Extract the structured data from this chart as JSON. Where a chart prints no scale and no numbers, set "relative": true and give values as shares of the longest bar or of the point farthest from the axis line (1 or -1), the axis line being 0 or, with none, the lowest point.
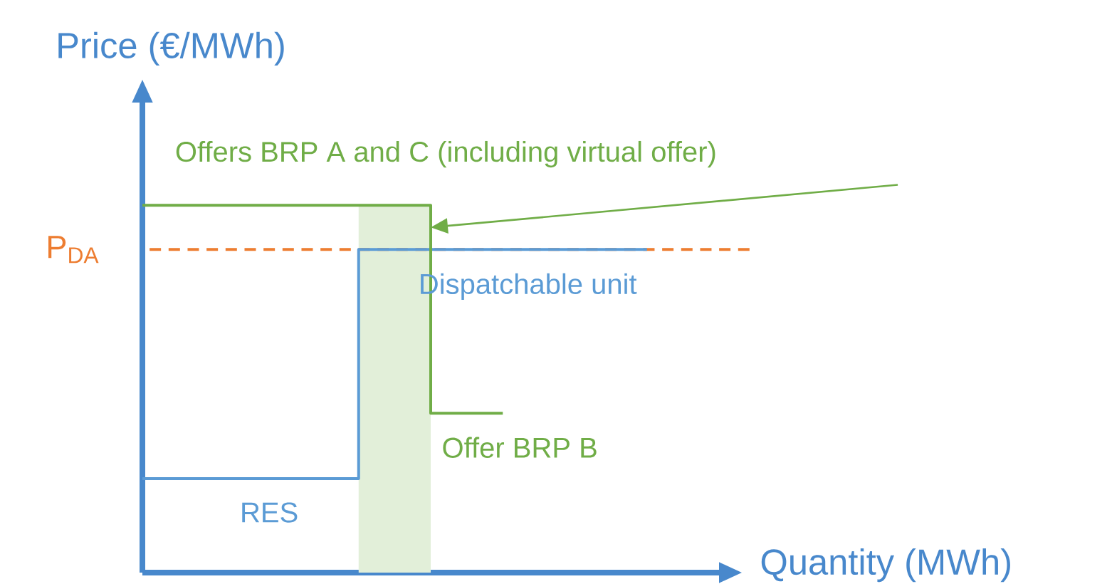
{
  "chart_data": {
    "type": "step",
    "relative": true,
    "xlabel": "Quantity (MWh)",
    "ylabel": "Price (€/MWh)",
    "categories": [
      null,
      null,
      null,
      null,
      null,
      null,
      null,
      null,
      null,
      null,
      null,
      null,
      null,
      null,
      null,
      null,
      null,
      null,
      null,
      null,
      null,
      null,
      null,
      null,
      null,
      null,
      null,
      null,
      null,
      null,
      null,
      null,
      null,
      null,
      null,
      null,
      null,
      null,
      null,
      null,
      null
    ],
    "series": [
      {
        "type": "area",
        "color": "#e2efd9",
        "values": [
          null,
          null,
          null,
          null,
          null,
          null,
          null,
          null,
          null,
          null,
          null,
          null,
          null,
          null,
          null,
          1,
          1,
          1,
          1,
          1,
          1,
          null,
          null,
          null,
          null,
          null,
          null,
          null,
          null,
          null,
          null,
          null,
          null,
          null,
          null,
          null,
          null,
          null,
          null,
          null,
          null
        ]
      },
      {
        "name": "Dispatchable unit",
        "color": "#5b9bd5",
        "values": [
          0.256,
          0.256,
          0.256,
          0.256,
          0.256,
          0.256,
          0.256,
          0.256,
          0.256,
          0.256,
          0.256,
          0.256,
          0.256,
          0.256,
          0.256,
          0.88,
          0.88,
          0.88,
          0.88,
          0.88,
          0.88,
          0.88,
          0.88,
          0.88,
          0.88,
          0.88,
          0.88,
          0.88,
          0.88,
          0.88,
          0.88,
          0.88,
          0.88,
          0.88,
          0.88,
          0.88,
          null,
          null,
          null,
          null,
          null
        ]
      },
      {
        "name": "Offers BRP A and C (including virtual offer)",
        "color": "#70ad47",
        "values": [
          1,
          1,
          1,
          1,
          1,
          1,
          1,
          1,
          1,
          1,
          1,
          1,
          1,
          1,
          1,
          1,
          1,
          1,
          1,
          1,
          0.434,
          0.434,
          0.434,
          0.434,
          0.434,
          0.434,
          null,
          null,
          null,
          null,
          null,
          null,
          null,
          null,
          null,
          null,
          null,
          null,
          null,
          null,
          null
        ]
      }
    ],
    "ref_lines": [
      {
        "axis": "y",
        "value": 0.88,
        "label": "P$_{DA}$",
        "color": "#ed7d31",
        "line_style": "dashed"
      }
    ],
    "annotations": [
      "RES",
      "Offer BRP B"
    ],
    "marker": "none"
  }
}
